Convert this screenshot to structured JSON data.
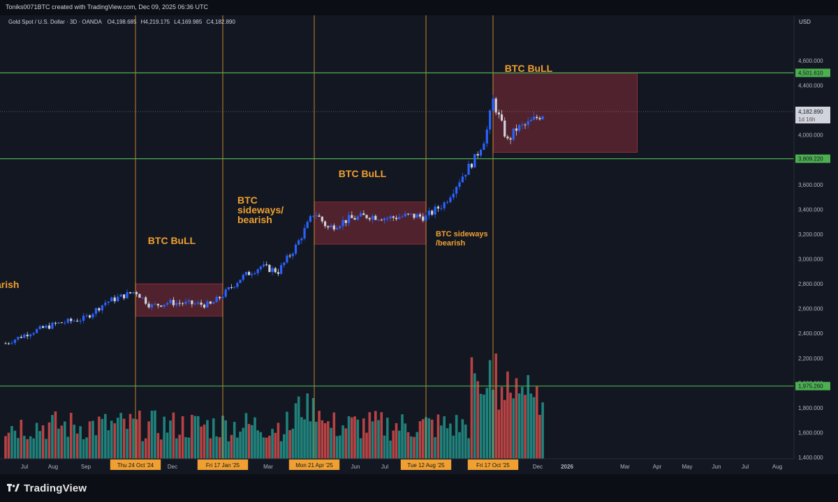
{
  "header": {
    "credit": "Toniks0071BTC created with TradingView.com, Dec 09, 2025 06:36 UTC"
  },
  "symbol_line": {
    "name": "Gold Spot / U.S. Dollar · 3D · OANDA",
    "open": "O4,198.685",
    "high": "H4,219.175",
    "low": "L4,169.985",
    "close": "C4,182.890"
  },
  "footer": {
    "brand": "TradingView"
  },
  "colors": {
    "background": "#131722",
    "bull_candle": "#2962ff",
    "bear_candle": "#d1d4dc",
    "volume_up": "#26a69a",
    "volume_down": "#ef5350",
    "level_line": "#4caf50",
    "annotation": "#f0a030",
    "zone_fill": "#7a2a35"
  },
  "chart_data": {
    "type": "candlestick",
    "currency_label": "USD",
    "y_ticks": [
      "4,600.000",
      "4,400.000",
      "4,200.000",
      "4,000.000",
      "3,800.000",
      "3,600.000",
      "3,400.000",
      "3,200.000",
      "3,000.000",
      "2,800.000",
      "2,600.000",
      "2,400.000",
      "2,200.000",
      "2,000.000",
      "1,800.000",
      "1,600.000",
      "1,400.000"
    ],
    "x_ticks": [
      "Jul",
      "Aug",
      "Sep",
      "Dec",
      "Mar",
      "Jun",
      "Jul",
      "Dec",
      "2026",
      "Mar",
      "Apr",
      "May",
      "Jun",
      "Jul",
      "Aug"
    ],
    "highlighted_dates": [
      "Thu 24 Oct '24",
      "Fri 17 Jan '25",
      "Mon 21 Apr '25",
      "Tue 12 Aug '25",
      "Fri 17 Oct '25"
    ],
    "last_price": "4,182.890",
    "countdown": "1d 16h",
    "levels": [
      {
        "label": "4,501.610",
        "value": 4501.61
      },
      {
        "label": "3,809.220",
        "value": 3809.22
      },
      {
        "label": "1,975.260",
        "value": 1975.26
      }
    ],
    "annotations": [
      {
        "text": "arish"
      },
      {
        "text": "BTC BuLL"
      },
      {
        "text": "BTC sideways/ bearish"
      },
      {
        "text": "BTC BuLL"
      },
      {
        "text": "BTC sideways /bearish"
      },
      {
        "text": "BTC BuLL"
      }
    ],
    "zones": [
      {
        "from_date": "2024-10-24",
        "to_date": "2025-01-17",
        "low": 2540,
        "high": 2800
      },
      {
        "from_date": "2025-04-21",
        "to_date": "2025-08-12",
        "low": 3120,
        "high": 3460
      },
      {
        "from_date": "2025-10-17",
        "to_date": "2025-12-31",
        "low": 3860,
        "high": 4500
      }
    ],
    "close_path": [
      [
        "2024-06-21",
        2320
      ],
      [
        "2024-07-15",
        2410
      ],
      [
        "2024-08-10",
        2480
      ],
      [
        "2024-09-05",
        2520
      ],
      [
        "2024-09-25",
        2650
      ],
      [
        "2024-10-24",
        2740
      ],
      [
        "2024-11-08",
        2620
      ],
      [
        "2024-11-25",
        2650
      ],
      [
        "2024-12-15",
        2640
      ],
      [
        "2025-01-05",
        2630
      ],
      [
        "2025-01-17",
        2710
      ],
      [
        "2025-02-05",
        2850
      ],
      [
        "2025-02-25",
        2940
      ],
      [
        "2025-03-15",
        2900
      ],
      [
        "2025-04-02",
        3100
      ],
      [
        "2025-04-21",
        3380
      ],
      [
        "2025-05-05",
        3250
      ],
      [
        "2025-05-25",
        3320
      ],
      [
        "2025-06-15",
        3350
      ],
      [
        "2025-07-05",
        3330
      ],
      [
        "2025-07-25",
        3350
      ],
      [
        "2025-08-12",
        3340
      ],
      [
        "2025-08-30",
        3450
      ],
      [
        "2025-09-15",
        3650
      ],
      [
        "2025-09-30",
        3820
      ],
      [
        "2025-10-10",
        4000
      ],
      [
        "2025-10-17",
        4280
      ],
      [
        "2025-10-25",
        4100
      ],
      [
        "2025-11-01",
        3950
      ],
      [
        "2025-11-10",
        4050
      ],
      [
        "2025-11-20",
        4080
      ],
      [
        "2025-12-09",
        4182.89
      ]
    ]
  }
}
